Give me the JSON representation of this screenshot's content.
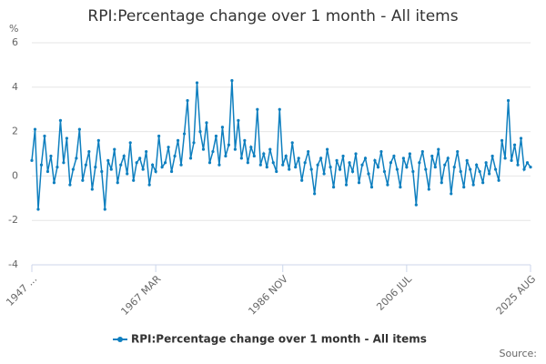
{
  "chart_data": {
    "type": "line",
    "title": "RPI:Percentage change over 1 month - All items",
    "y_label": "%",
    "source": "Source:",
    "categories": [
      "1947 ...",
      null,
      null,
      null,
      null,
      null,
      null,
      null,
      null,
      null,
      null,
      null,
      null,
      null,
      null,
      null,
      null,
      null,
      null,
      null,
      null,
      null,
      null,
      null,
      null,
      null,
      null,
      null,
      null,
      null,
      null,
      null,
      null,
      null,
      null,
      null,
      null,
      null,
      null,
      "1967 MAR",
      null,
      null,
      null,
      null,
      null,
      null,
      null,
      null,
      null,
      null,
      null,
      null,
      null,
      null,
      null,
      null,
      null,
      null,
      null,
      null,
      null,
      null,
      null,
      null,
      null,
      null,
      null,
      null,
      null,
      null,
      null,
      null,
      null,
      null,
      null,
      null,
      null,
      null,
      null,
      "1986 NOV",
      null,
      null,
      null,
      null,
      null,
      null,
      null,
      null,
      null,
      null,
      null,
      null,
      null,
      null,
      null,
      null,
      null,
      null,
      null,
      null,
      null,
      null,
      null,
      null,
      null,
      null,
      null,
      null,
      null,
      null,
      null,
      null,
      null,
      null,
      null,
      null,
      null,
      null,
      "2006 JUL",
      null,
      null,
      null,
      null,
      null,
      null,
      null,
      null,
      null,
      null,
      null,
      null,
      null,
      null,
      null,
      null,
      null,
      null,
      null,
      null,
      null,
      null,
      null,
      null,
      null,
      null,
      null,
      null,
      null,
      null,
      null,
      null,
      null,
      null,
      null,
      null,
      null,
      null,
      "2025 AUG"
    ],
    "series": [
      {
        "name": "RPI:Percentage change over 1 month - All items",
        "color": "#0e7fbf",
        "values": [
          0.7,
          2.1,
          -1.5,
          0.5,
          1.8,
          0.2,
          0.9,
          -0.3,
          0.4,
          2.5,
          0.6,
          1.7,
          -0.4,
          0.3,
          0.8,
          2.1,
          -0.2,
          0.5,
          1.1,
          -0.6,
          0.4,
          1.6,
          0.2,
          -1.5,
          0.7,
          0.3,
          1.2,
          -0.3,
          0.5,
          0.9,
          0.1,
          1.5,
          -0.2,
          0.6,
          0.8,
          0.3,
          1.1,
          -0.4,
          0.5,
          0.2,
          1.8,
          0.4,
          0.6,
          1.3,
          0.2,
          0.9,
          1.6,
          0.5,
          1.9,
          3.4,
          0.8,
          1.5,
          4.2,
          2.0,
          1.2,
          2.4,
          0.6,
          1.1,
          1.8,
          0.5,
          2.2,
          0.9,
          1.4,
          4.3,
          1.2,
          2.5,
          0.8,
          1.6,
          0.6,
          1.3,
          0.9,
          3.0,
          0.5,
          1.0,
          0.4,
          1.2,
          0.6,
          0.2,
          3.0,
          0.5,
          0.9,
          0.3,
          1.5,
          0.4,
          0.8,
          -0.2,
          0.6,
          1.1,
          0.3,
          -0.8,
          0.5,
          0.8,
          0.1,
          1.2,
          0.4,
          -0.5,
          0.7,
          0.3,
          0.9,
          -0.4,
          0.6,
          0.2,
          1.0,
          -0.3,
          0.5,
          0.8,
          0.1,
          -0.5,
          0.7,
          0.4,
          1.1,
          0.2,
          -0.4,
          0.6,
          0.9,
          0.3,
          -0.5,
          0.8,
          0.4,
          1.0,
          0.2,
          -1.3,
          0.6,
          1.1,
          0.3,
          -0.6,
          0.9,
          0.4,
          1.2,
          -0.3,
          0.5,
          0.8,
          -0.8,
          0.4,
          1.1,
          0.2,
          -0.5,
          0.7,
          0.3,
          -0.4,
          0.5,
          0.2,
          -0.3,
          0.6,
          0.1,
          0.9,
          0.3,
          -0.2,
          1.6,
          0.8,
          3.4,
          0.7,
          1.4,
          0.5,
          1.7,
          0.3,
          0.6,
          0.4
        ]
      }
    ],
    "ylim": [
      -4,
      6
    ],
    "yticks": [
      -4,
      -2,
      0,
      2,
      4,
      6
    ],
    "grid": true
  }
}
